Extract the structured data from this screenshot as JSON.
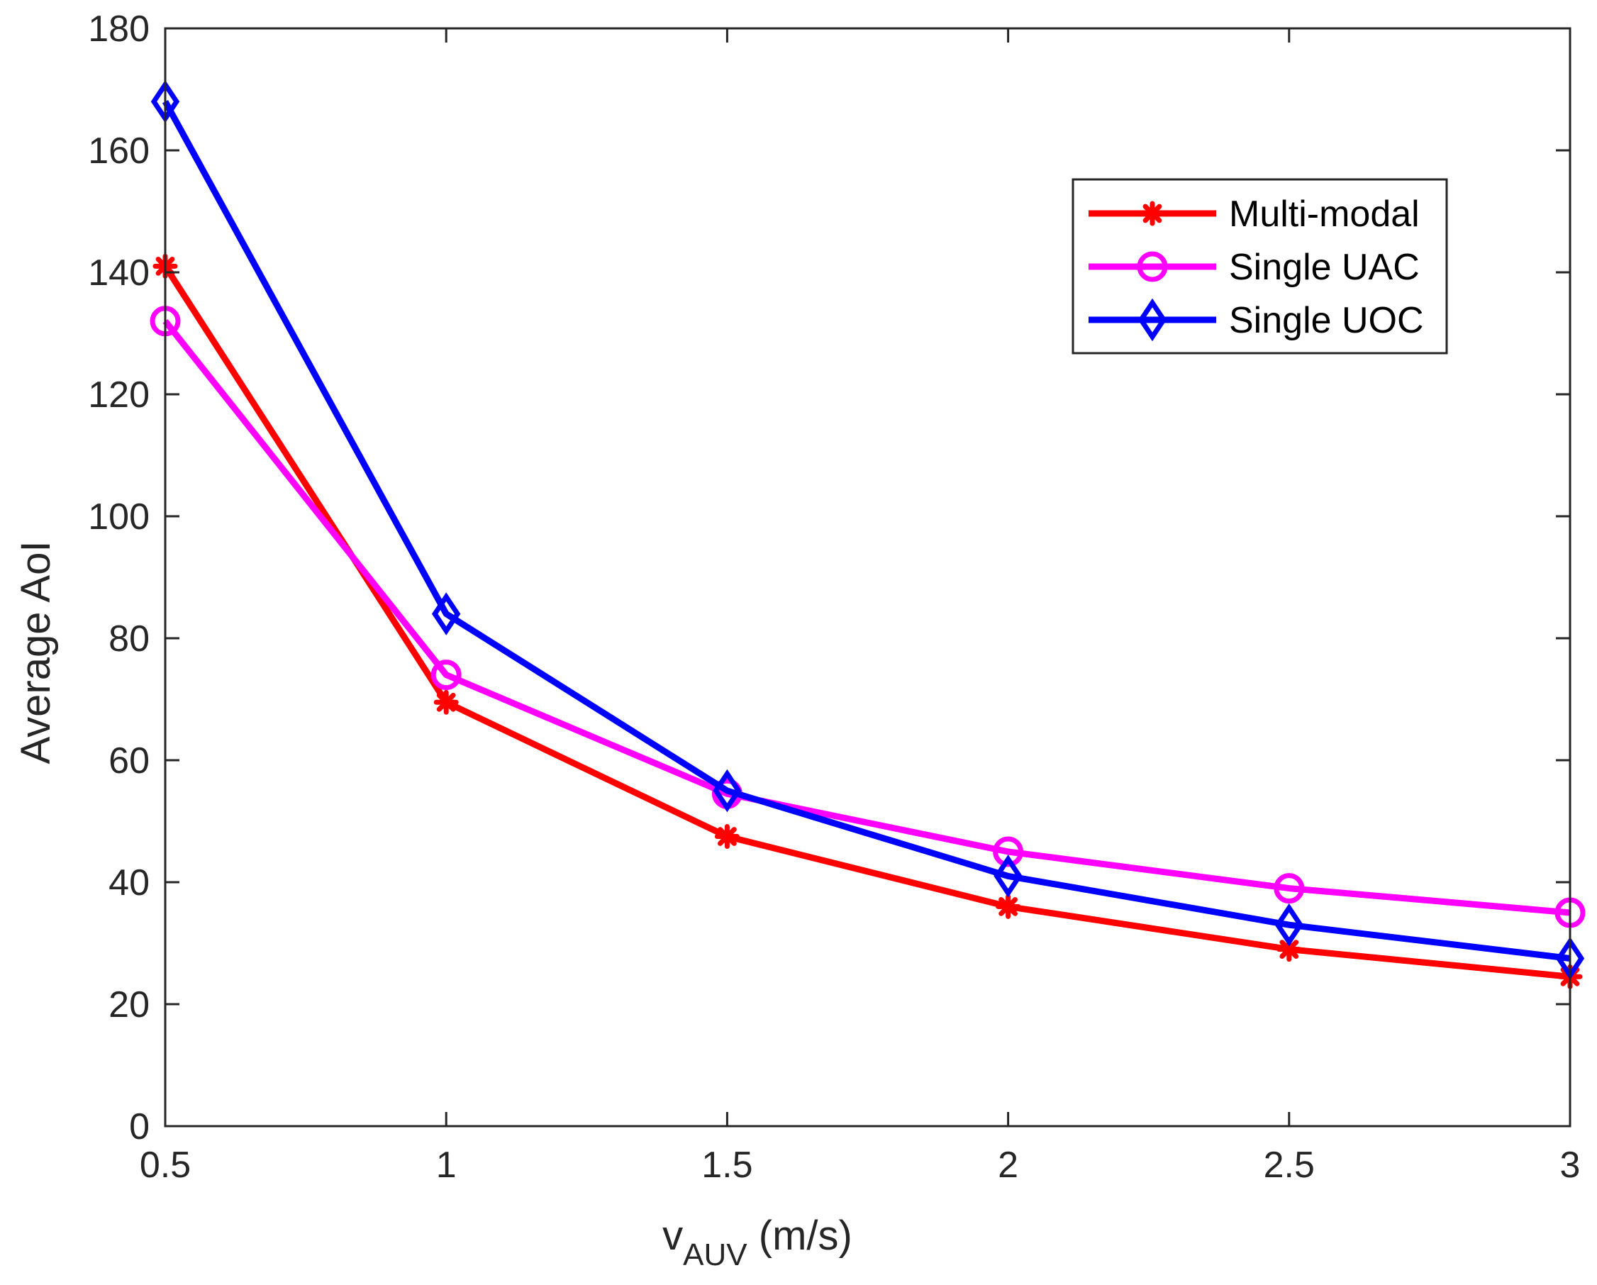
{
  "chart_data": {
    "type": "line",
    "title": "",
    "x": [
      0.5,
      1,
      1.5,
      2,
      2.5,
      3
    ],
    "xlim": [
      0.5,
      3
    ],
    "ylim": [
      0,
      180
    ],
    "xticks": [
      "0.5",
      "1",
      "1.5",
      "2",
      "2.5",
      "3"
    ],
    "yticks": [
      "0",
      "20",
      "40",
      "60",
      "80",
      "100",
      "120",
      "140",
      "160",
      "180"
    ],
    "xlabel": {
      "main": "v",
      "sub": "AUV",
      "rest": " (m/s)"
    },
    "ylabel": "Average AoI",
    "grid": false,
    "legend_position": "top-right",
    "series": [
      {
        "name": "Multi-modal",
        "color": "#ff0000",
        "marker": "asterisk",
        "values": [
          141,
          69.5,
          47.5,
          36,
          29,
          24.5
        ]
      },
      {
        "name": "Single UAC",
        "color": "#ff00ff",
        "marker": "circle",
        "values": [
          132,
          74,
          54.5,
          45,
          39,
          35
        ]
      },
      {
        "name": "Single UOC",
        "color": "#0000ff",
        "marker": "diamond",
        "values": [
          168,
          84,
          55,
          41,
          33,
          27.5
        ]
      }
    ]
  }
}
